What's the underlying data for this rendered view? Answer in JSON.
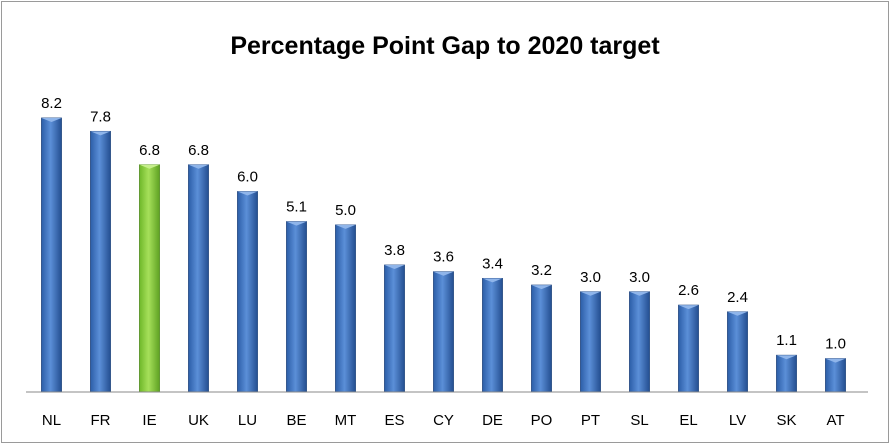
{
  "chart_data": {
    "type": "bar",
    "title": "Percentage Point Gap to 2020 target",
    "xlabel": "",
    "ylabel": "",
    "categories": [
      "NL",
      "FR",
      "IE",
      "UK",
      "LU",
      "BE",
      "MT",
      "ES",
      "CY",
      "DE",
      "PO",
      "PT",
      "SL",
      "EL",
      "LV",
      "SK",
      "AT"
    ],
    "series": [
      {
        "values": [
          8.2,
          7.8,
          6.8,
          6.8,
          6.0,
          5.1,
          5.0,
          3.8,
          3.6,
          3.4,
          3.2,
          3.0,
          3.0,
          2.6,
          2.4,
          1.1,
          1.0
        ]
      }
    ],
    "value_labels": [
      "8.2",
      "7.8",
      "6.8",
      "6.8",
      "6.0",
      "5.1",
      "5.0",
      "3.8",
      "3.6",
      "3.4",
      "3.2",
      "3.0",
      "3.0",
      "2.6",
      "2.4",
      "1.1",
      "1.0"
    ],
    "highlight_category": "IE",
    "ylim": [
      0,
      8.2
    ],
    "grid": false,
    "legend": "none",
    "colors": {
      "default": "#3f73c0",
      "highlight": "#8ed43c"
    }
  }
}
